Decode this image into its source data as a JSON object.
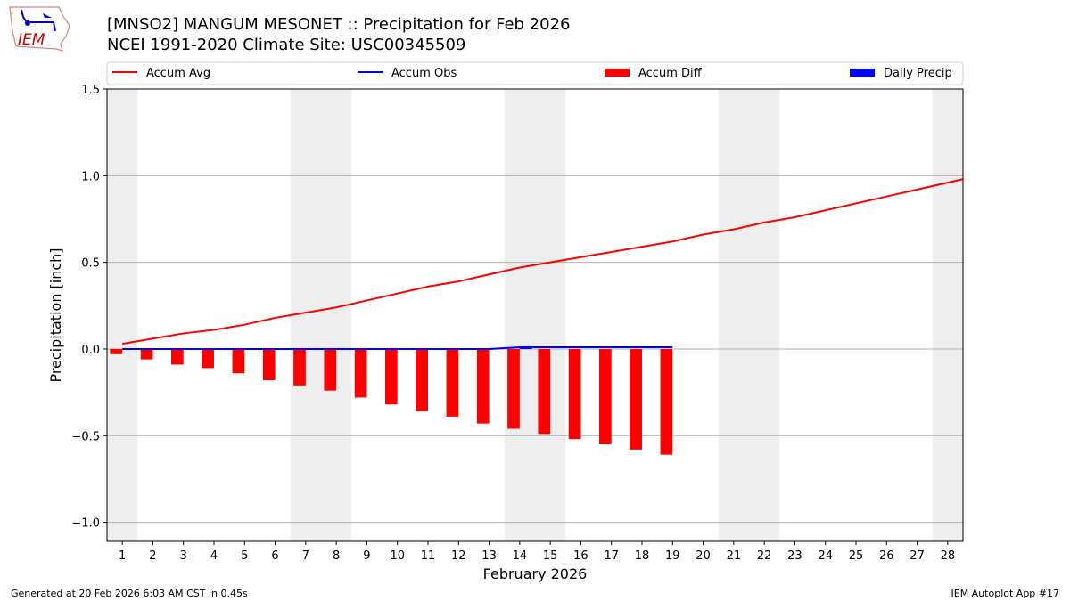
{
  "header": {
    "title": "[MNSO2] MANGUM MESONET :: Precipitation for Feb 2026",
    "subtitle": "NCEI 1991-2020 Climate Site: USC00345509",
    "logo_text": "IEM"
  },
  "footer": {
    "generated": "Generated at 20 Feb 2026 6:03 AM CST in 0.45s",
    "app": "IEM Autoplot App #17"
  },
  "chart_data": {
    "type": "bar",
    "xlabel": "February 2026",
    "ylabel": "Precipitation [inch]",
    "xlim": [
      0.5,
      28.5
    ],
    "ylim": [
      -1.11,
      1.5
    ],
    "xticks": [
      1,
      2,
      3,
      4,
      5,
      6,
      7,
      8,
      9,
      10,
      11,
      12,
      13,
      14,
      15,
      16,
      17,
      18,
      19,
      20,
      21,
      22,
      23,
      24,
      25,
      26,
      27,
      28
    ],
    "yticks": [
      -1.0,
      -0.5,
      0.0,
      0.5,
      1.0,
      1.5
    ],
    "ytick_labels": [
      "−1.0",
      "−0.5",
      "0.0",
      "0.5",
      "1.0",
      "1.5"
    ],
    "grid": "horizontal",
    "legend_position": "top",
    "weekend_shading": [
      [
        0.5,
        1.5
      ],
      [
        6.5,
        8.5
      ],
      [
        13.5,
        15.5
      ],
      [
        20.5,
        22.5
      ],
      [
        27.5,
        28.5
      ]
    ],
    "series": [
      {
        "name": "Accum Avg",
        "kind": "line",
        "color": "#ff0000",
        "x": [
          1,
          2,
          3,
          4,
          5,
          6,
          7,
          8,
          9,
          10,
          11,
          12,
          13,
          14,
          15,
          16,
          17,
          18,
          19,
          20,
          21,
          22,
          23,
          24,
          25,
          26,
          27,
          28,
          29
        ],
        "values": [
          0.03,
          0.06,
          0.09,
          0.11,
          0.14,
          0.18,
          0.21,
          0.24,
          0.28,
          0.32,
          0.36,
          0.39,
          0.43,
          0.47,
          0.5,
          0.53,
          0.56,
          0.59,
          0.62,
          0.66,
          0.69,
          0.73,
          0.76,
          0.8,
          0.84,
          0.88,
          0.92,
          0.96,
          1.0
        ]
      },
      {
        "name": "Accum Obs",
        "kind": "line",
        "color": "#0000ff",
        "x": [
          1,
          2,
          3,
          4,
          5,
          6,
          7,
          8,
          9,
          10,
          11,
          12,
          13,
          14,
          15,
          16,
          17,
          18,
          19
        ],
        "values": [
          0,
          0,
          0,
          0,
          0,
          0,
          0,
          0,
          0,
          0,
          0,
          0,
          0,
          0.01,
          0.01,
          0.01,
          0.01,
          0.01,
          0.01
        ]
      },
      {
        "name": "Accum Diff",
        "kind": "bar",
        "color": "#ff0000",
        "x": [
          1,
          2,
          3,
          4,
          5,
          6,
          7,
          8,
          9,
          10,
          11,
          12,
          13,
          14,
          15,
          16,
          17,
          18,
          19
        ],
        "values": [
          -0.03,
          -0.06,
          -0.09,
          -0.11,
          -0.14,
          -0.18,
          -0.21,
          -0.24,
          -0.28,
          -0.32,
          -0.36,
          -0.39,
          -0.43,
          -0.46,
          -0.49,
          -0.52,
          -0.55,
          -0.58,
          -0.61
        ]
      },
      {
        "name": "Daily Precip",
        "kind": "bar",
        "color": "#0000ff",
        "x": [
          1,
          2,
          3,
          4,
          5,
          6,
          7,
          8,
          9,
          10,
          11,
          12,
          13,
          14,
          15,
          16,
          17,
          18,
          19
        ],
        "values": [
          0,
          0,
          0,
          0,
          0,
          0,
          0,
          0,
          0,
          0,
          0,
          0,
          0,
          0.01,
          0,
          0,
          0,
          0,
          0
        ]
      }
    ]
  }
}
